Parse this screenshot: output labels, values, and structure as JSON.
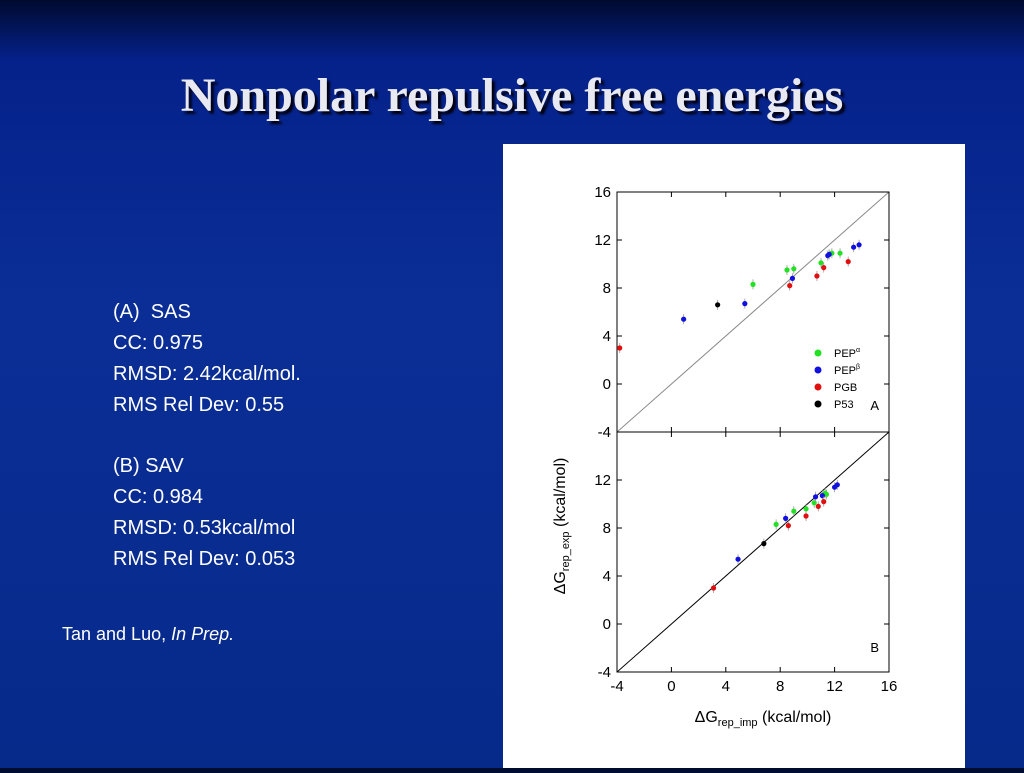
{
  "slide": {
    "title": "Nonpolar repulsive free energies"
  },
  "stats": {
    "a_label": "(A)",
    "a_method": "SAS",
    "a_cc": "CC: 0.975",
    "a_rmsd": "RMSD: 2.42kcal/mol.",
    "a_rel": "RMS Rel Dev: 0.55",
    "b_label": "(B) SAV",
    "b_cc": "CC: 0.984",
    "b_rmsd": "RMSD: 0.53kcal/mol",
    "b_rel": "RMS Rel Dev: 0.053"
  },
  "citation": {
    "authors": "Tan and Luo, ",
    "status": "In Prep."
  },
  "chart_data": [
    {
      "type": "scatter",
      "panel_label": "A",
      "xlim": [
        -4,
        16
      ],
      "ylim": [
        -4,
        16
      ],
      "yticks": [
        "-4",
        "0",
        "4",
        "8",
        "12",
        "16"
      ],
      "diagonal": true,
      "diagonal_color": "#888888",
      "legend_position": "bottom-right",
      "legend": [
        {
          "name": "PEP",
          "sup": "α",
          "color": "#22e022"
        },
        {
          "name": "PEP",
          "sup": "β",
          "color": "#1010e0"
        },
        {
          "name": "PGB",
          "sup": "",
          "color": "#e01010"
        },
        {
          "name": "P53",
          "sup": "",
          "color": "#000000"
        }
      ],
      "series": [
        {
          "name": "PEPα",
          "color": "#22e022",
          "points": [
            [
              6.0,
              8.3
            ],
            [
              8.5,
              9.5
            ],
            [
              9.0,
              9.6
            ],
            [
              11.0,
              10.1
            ],
            [
              11.8,
              10.9
            ],
            [
              12.4,
              10.9
            ]
          ]
        },
        {
          "name": "PEPβ",
          "color": "#1010e0",
          "points": [
            [
              0.9,
              5.4
            ],
            [
              5.4,
              6.7
            ],
            [
              8.9,
              8.8
            ],
            [
              11.5,
              10.7
            ],
            [
              11.6,
              10.8
            ],
            [
              13.4,
              11.4
            ],
            [
              13.8,
              11.6
            ]
          ]
        },
        {
          "name": "PGB",
          "color": "#e01010",
          "points": [
            [
              -3.8,
              3.0
            ],
            [
              8.7,
              8.2
            ],
            [
              10.7,
              9.0
            ],
            [
              11.2,
              9.7
            ],
            [
              13.0,
              10.2
            ]
          ]
        },
        {
          "name": "P53",
          "color": "#000000",
          "points": [
            [
              3.4,
              6.6
            ]
          ]
        }
      ]
    },
    {
      "type": "scatter",
      "panel_label": "B",
      "xlim": [
        -4,
        16
      ],
      "ylim": [
        -4,
        16
      ],
      "xticks": [
        "-4",
        "0",
        "4",
        "8",
        "12",
        "16"
      ],
      "yticks": [
        "-4",
        "0",
        "4",
        "8",
        "12"
      ],
      "xlabel": "ΔG",
      "xlabel_sub": "rep_imp",
      "xlabel_unit": " (kcal/mol)",
      "ylabel": "ΔG",
      "ylabel_sub": "rep_exp",
      "ylabel_unit": " (kcal/mol)",
      "diagonal": true,
      "diagonal_color": "#000000",
      "series": [
        {
          "name": "PEPα",
          "color": "#22e022",
          "points": [
            [
              7.7,
              8.3
            ],
            [
              9.0,
              9.4
            ],
            [
              9.9,
              9.6
            ],
            [
              10.5,
              10.1
            ],
            [
              11.4,
              10.8
            ],
            [
              11.3,
              10.9
            ]
          ]
        },
        {
          "name": "PEPβ",
          "color": "#1010e0",
          "points": [
            [
              4.9,
              5.4
            ],
            [
              8.4,
              8.8
            ],
            [
              10.6,
              10.6
            ],
            [
              11.1,
              10.7
            ],
            [
              12.0,
              11.4
            ],
            [
              12.2,
              11.6
            ]
          ]
        },
        {
          "name": "PGB",
          "color": "#e01010",
          "points": [
            [
              3.1,
              3.0
            ],
            [
              8.6,
              8.2
            ],
            [
              9.9,
              9.0
            ],
            [
              10.8,
              9.8
            ],
            [
              11.2,
              10.2
            ]
          ]
        },
        {
          "name": "P53",
          "color": "#000000",
          "points": [
            [
              6.8,
              6.7
            ]
          ]
        }
      ]
    }
  ]
}
